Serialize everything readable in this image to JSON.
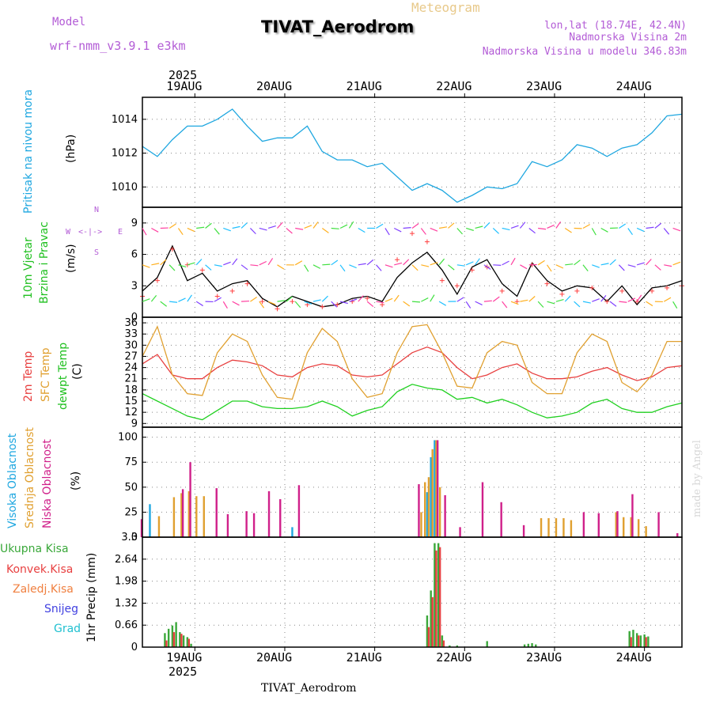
{
  "header": {
    "model_label": "Model",
    "model_name": "wrf-nmm_v3.9.1 e3km",
    "title": "TIVAT_Aerodrom",
    "subtitle": "Meteogram",
    "lonlat": "lon,lat (18.74E, 42.4N)",
    "height_2m": "Nadmorska Visina 2m",
    "height_model": "Nadmorska Visina u modelu 346.83m"
  },
  "axis_top": {
    "year": "2025",
    "dates": [
      "19AUG",
      "20AUG",
      "21AUG",
      "22AUG",
      "23AUG",
      "24AUG"
    ]
  },
  "axis_bottom": {
    "year": "2025",
    "dates": [
      "19AUG",
      "20AUG",
      "21AUG",
      "22AUG",
      "23AUG",
      "24AUG"
    ]
  },
  "footer": {
    "station": "TIVAT_Aerodrom"
  },
  "watermark": "made by Angel",
  "colors": {
    "pressure": "#1fa7e0",
    "temp2m": "#e84040",
    "sfc": "#e0a030",
    "dewpt": "#20d020",
    "wind_line": "#000000",
    "wind_marker": "#ff4040",
    "high": "#1fa7e0",
    "mid": "#e0a030",
    "low": "#d0208a",
    "precip_total": "#3aa83a",
    "precip_conv": "#e84040"
  },
  "panels": {
    "pressure": {
      "label": "Pritisak na nivou mora",
      "unit": "(hPa)"
    },
    "wind": {
      "label1": "10m Vjetar",
      "label2": "Brzina i Pravac",
      "unit": "(m/s)",
      "compass": {
        "n": "N",
        "s": "S",
        "e": "E",
        "w": "W"
      }
    },
    "temp": {
      "label1": "2m Temp",
      "label2": "SFC Temp",
      "label3": "dewpt Temp",
      "unit": "(C)"
    },
    "cloud": {
      "label1": "Visoka Oblacnost",
      "label2": "Srednja Oblacnost",
      "label3": "Niska Oblacnost",
      "unit": "(%)"
    },
    "precip": {
      "unit": "1hr Precip (mm)",
      "legend": [
        "Ukupna Kisa",
        "Konvek.Kisa",
        "Zaledj.Kisa",
        "Snijeg",
        "Grad"
      ],
      "legend_colors": [
        "#3aa83a",
        "#e84040",
        "#f08040",
        "#4040e0",
        "#20c0d0"
      ]
    }
  },
  "chart_data": [
    {
      "type": "line",
      "title": "Pritisak na nivou mora",
      "ylabel": "(hPa)",
      "x_unit": "hours since 18AUG 12UTC",
      "ylim": [
        1008.8,
        1015.3
      ],
      "yticks": [
        1010,
        1012,
        1014
      ],
      "series": [
        {
          "name": "Pressure",
          "x": [
            0,
            4,
            8,
            12,
            16,
            20,
            24,
            28,
            32,
            36,
            40,
            44,
            48,
            52,
            56,
            60,
            64,
            68,
            72,
            76,
            80,
            84,
            88,
            92,
            96,
            100,
            104,
            108,
            112,
            116,
            120,
            124,
            128,
            132,
            136,
            140,
            144
          ],
          "values": [
            1012.4,
            1011.8,
            1012.8,
            1013.6,
            1013.6,
            1014.0,
            1014.6,
            1013.6,
            1012.7,
            1012.9,
            1012.9,
            1013.6,
            1012.1,
            1011.6,
            1011.6,
            1011.2,
            1011.4,
            1010.6,
            1009.8,
            1010.2,
            1009.8,
            1009.1,
            1009.5,
            1010.0,
            1009.9,
            1010.2,
            1011.5,
            1011.2,
            1011.6,
            1012.5,
            1012.3,
            1011.8,
            1012.3,
            1012.5,
            1013.2,
            1014.2,
            1014.3
          ]
        }
      ]
    },
    {
      "type": "line",
      "title": "10m Vjetar Brzina i Pravac",
      "ylabel": "(m/s)",
      "x_unit": "hours since 18AUG 12UTC",
      "ylim": [
        0,
        10.5
      ],
      "yticks": [
        0,
        3,
        6,
        9
      ],
      "series": [
        {
          "name": "Wind speed",
          "x": [
            0,
            4,
            8,
            12,
            16,
            20,
            24,
            28,
            32,
            36,
            40,
            44,
            48,
            52,
            56,
            60,
            64,
            68,
            72,
            76,
            80,
            84,
            88,
            92,
            96,
            100,
            104,
            108,
            112,
            116,
            120,
            124,
            128,
            132,
            136,
            140,
            144
          ],
          "values": [
            2.5,
            3.8,
            6.8,
            3.5,
            4.2,
            2.5,
            3.2,
            3.5,
            1.8,
            1.0,
            2.0,
            1.5,
            1.0,
            1.2,
            1.8,
            2.0,
            1.5,
            3.8,
            5.2,
            6.2,
            4.5,
            2.2,
            4.8,
            5.5,
            3.2,
            2.0,
            5.2,
            3.5,
            2.5,
            3.0,
            2.8,
            1.5,
            3.0,
            1.2,
            2.8,
            3.0,
            3.5
          ]
        },
        {
          "name": "Gust markers",
          "x": [
            0,
            4,
            8,
            12,
            16,
            20,
            24,
            28,
            32,
            36,
            40,
            44,
            48,
            52,
            56,
            60,
            64,
            68,
            72,
            76,
            80,
            84,
            88,
            92,
            96,
            100,
            104,
            108,
            112,
            116,
            120,
            124,
            128,
            132,
            136,
            140,
            144
          ],
          "values": [
            2.0,
            3.5,
            6.5,
            5.0,
            4.5,
            2.0,
            2.5,
            3.2,
            1.5,
            0.8,
            1.5,
            1.2,
            1.0,
            1.2,
            1.5,
            1.8,
            1.2,
            5.5,
            8.0,
            7.2,
            3.5,
            3.0,
            4.5,
            4.8,
            2.5,
            1.5,
            5.0,
            3.2,
            2.2,
            2.5,
            2.8,
            1.5,
            2.5,
            1.5,
            2.5,
            2.8,
            3.0
          ]
        }
      ]
    },
    {
      "type": "line",
      "title": "2m Temp / SFC Temp / dewpt Temp",
      "ylabel": "(C)",
      "x_unit": "hours since 18AUG 12UTC",
      "ylim": [
        8,
        37.5
      ],
      "yticks": [
        9,
        12,
        15,
        18,
        21,
        24,
        27,
        30,
        33,
        36
      ],
      "series": [
        {
          "name": "2m Temp",
          "x": [
            0,
            4,
            8,
            12,
            16,
            20,
            24,
            28,
            32,
            36,
            40,
            44,
            48,
            52,
            56,
            60,
            64,
            68,
            72,
            76,
            80,
            84,
            88,
            92,
            96,
            100,
            104,
            108,
            112,
            116,
            120,
            124,
            128,
            132,
            136,
            140,
            144
          ],
          "values": [
            25,
            27.5,
            22,
            21,
            21,
            24,
            26,
            25.5,
            24.5,
            22,
            21.5,
            24,
            25,
            24.5,
            22,
            21.5,
            22,
            25,
            28,
            29.5,
            28,
            24,
            21,
            22,
            24,
            25,
            22.5,
            21,
            21,
            21.5,
            23,
            24,
            22,
            20.5,
            21.5,
            24,
            24.5
          ]
        },
        {
          "name": "SFC Temp",
          "x": [
            0,
            4,
            8,
            12,
            16,
            20,
            24,
            28,
            32,
            36,
            40,
            44,
            48,
            52,
            56,
            60,
            64,
            68,
            72,
            76,
            80,
            84,
            88,
            92,
            96,
            100,
            104,
            108,
            112,
            116,
            120,
            124,
            128,
            132,
            136,
            140,
            144
          ],
          "values": [
            27,
            35,
            22,
            17,
            16.5,
            28,
            33,
            31,
            22,
            16,
            15.5,
            28,
            34.5,
            31,
            21,
            16,
            17,
            28,
            35,
            35.5,
            28,
            19,
            18.5,
            28,
            31,
            30,
            20,
            17,
            17,
            28,
            33,
            31,
            20,
            17.5,
            22,
            31,
            31
          ]
        },
        {
          "name": "dewpt Temp",
          "x": [
            0,
            4,
            8,
            12,
            16,
            20,
            24,
            28,
            32,
            36,
            40,
            44,
            48,
            52,
            56,
            60,
            64,
            68,
            72,
            76,
            80,
            84,
            88,
            92,
            96,
            100,
            104,
            108,
            112,
            116,
            120,
            124,
            128,
            132,
            136,
            140,
            144
          ],
          "values": [
            17,
            15,
            13,
            11,
            10,
            12.5,
            15,
            15,
            13.5,
            13,
            13,
            13.5,
            15,
            13.5,
            11,
            12.5,
            13.5,
            17.5,
            19.5,
            18.5,
            18,
            15.5,
            16,
            14.5,
            15.5,
            14,
            12,
            10.5,
            11,
            12,
            14.5,
            15.5,
            13,
            12,
            12,
            13.5,
            14.5
          ]
        }
      ]
    },
    {
      "type": "bar",
      "title": "Visoka / Srednja / Niska Oblacnost",
      "ylabel": "(%)",
      "x_unit": "hours since 18AUG 12UTC",
      "ylim": [
        0,
        110
      ],
      "yticks": [
        0,
        25,
        50,
        75,
        100
      ],
      "series": [
        {
          "name": "Visoka Oblacnost",
          "x": [
            2,
            40,
            76,
            77,
            78
          ],
          "values": [
            33,
            10,
            45,
            80,
            97
          ]
        },
        {
          "name": "Srednja Oblacnost",
          "x": [
            4,
            8,
            10,
            12,
            14,
            16,
            74,
            75,
            76,
            77,
            78,
            79,
            106,
            108,
            110,
            112,
            114,
            126,
            128,
            130,
            132,
            134
          ],
          "values": [
            21,
            40,
            44,
            46,
            41,
            41,
            25,
            55,
            60,
            88,
            97,
            50,
            19,
            19,
            19,
            19,
            17,
            25,
            20,
            20,
            18,
            11
          ]
        },
        {
          "name": "Niska Oblacnost",
          "x": [
            0,
            11,
            13,
            20,
            23,
            28,
            30,
            34,
            37,
            42,
            74,
            79,
            81,
            85,
            91,
            96,
            102,
            118,
            122,
            127,
            131,
            138,
            143
          ],
          "values": [
            18,
            48,
            75,
            49,
            23,
            26,
            24,
            46,
            38,
            52,
            53,
            97,
            42,
            10,
            55,
            35,
            12,
            25,
            24,
            26,
            43,
            25,
            4
          ]
        }
      ]
    },
    {
      "type": "bar",
      "title": "1hr Precip",
      "ylabel": "1hr Precip (mm)",
      "x_unit": "hours since 18AUG 12UTC",
      "ylim": [
        0,
        3.3
      ],
      "yticks": [
        0,
        0.66,
        1.32,
        1.98,
        2.64,
        3.3
      ],
      "series": [
        {
          "name": "Ukupna Kisa",
          "x": [
            6,
            7,
            8,
            9,
            10,
            11,
            12,
            13,
            76,
            77,
            78,
            79,
            80,
            82,
            84,
            92,
            102,
            103,
            104,
            105,
            130,
            131,
            132,
            133,
            134,
            135
          ],
          "values": [
            0.42,
            0.55,
            0.65,
            0.75,
            0.45,
            0.35,
            0.3,
            0.1,
            0.95,
            1.7,
            3.12,
            3.12,
            0.35,
            0.05,
            0.05,
            0.18,
            0.08,
            0.1,
            0.12,
            0.08,
            0.48,
            0.52,
            0.42,
            0.35,
            0.38,
            0.32
          ]
        },
        {
          "name": "Konvek.Kisa",
          "x": [
            6,
            8,
            10,
            12,
            76,
            77,
            78,
            79,
            80,
            130,
            132,
            134
          ],
          "values": [
            0.2,
            0.45,
            0.4,
            0.25,
            0.6,
            1.5,
            2.9,
            3.0,
            0.2,
            0.3,
            0.35,
            0.3
          ]
        }
      ]
    }
  ]
}
